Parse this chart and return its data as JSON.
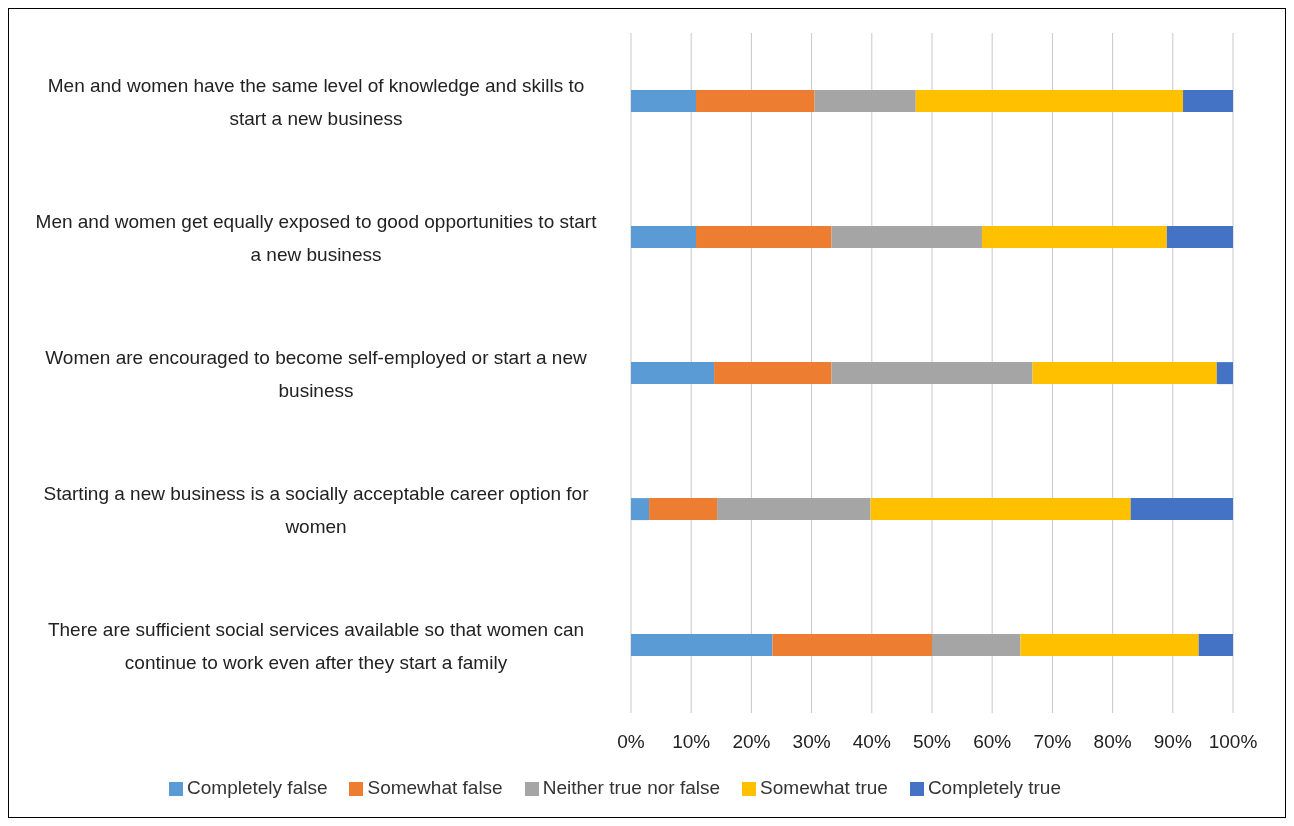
{
  "chart_data": {
    "type": "bar",
    "orientation": "horizontal",
    "stacked": true,
    "categories": [
      "Men and women have the same level of knowledge and skills to start a new business",
      "Men and women get equally exposed to good opportunities to start a new business",
      "Women are encouraged to become self-employed or start a new business",
      "Starting a new business is a socially acceptable career option for women",
      "There are sufficient social services available so that women can continue to work even after they start a family"
    ],
    "series": [
      {
        "name": "Completely false",
        "color": "#5b9bd5",
        "values": [
          10.8,
          10.8,
          13.8,
          3,
          23.5
        ]
      },
      {
        "name": "Somewhat false",
        "color": "#ed7d31",
        "values": [
          19.7,
          22.5,
          19.5,
          11.3,
          26.5
        ]
      },
      {
        "name": "Neither true nor false",
        "color": "#a5a5a5",
        "values": [
          16.8,
          25,
          33.4,
          25.5,
          14.7
        ]
      },
      {
        "name": "Somewhat true",
        "color": "#ffc000",
        "values": [
          44.4,
          30.7,
          30.6,
          43.2,
          29.6
        ]
      },
      {
        "name": "Completely true",
        "color": "#4472c4",
        "values": [
          8.3,
          11,
          2.7,
          17,
          5.7
        ]
      }
    ],
    "xlim": [
      0,
      100
    ],
    "xticks": [
      {
        "value": 0,
        "label": "0%"
      },
      {
        "value": 10,
        "label": "10%"
      },
      {
        "value": 20,
        "label": "20%"
      },
      {
        "value": 30,
        "label": "30%"
      },
      {
        "value": 40,
        "label": "40%"
      },
      {
        "value": 50,
        "label": "50%"
      },
      {
        "value": 60,
        "label": "60%"
      },
      {
        "value": 70,
        "label": "70%"
      },
      {
        "value": 80,
        "label": "80%"
      },
      {
        "value": 90,
        "label": "90%"
      },
      {
        "value": 100,
        "label": "100%"
      }
    ],
    "grid": "x",
    "legend": "bottom"
  }
}
